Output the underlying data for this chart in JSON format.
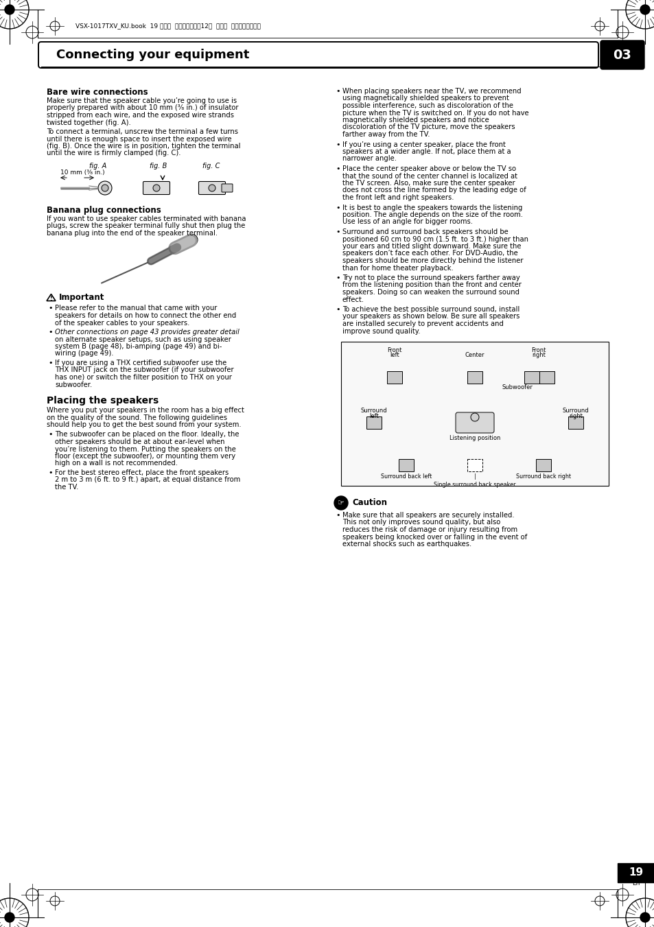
{
  "page_bg": "#ffffff",
  "header_text": "VSX-1017TXV_KU.book  19 ページ  ２００７年４月12日  木曜日  午前１１時３２分",
  "section_title": "Connecting your equipment",
  "chapter_num": "03",
  "page_num": "19",
  "bare_wire_title": "Bare wire connections",
  "banana_title": "Banana plug connections",
  "important_title": "Important",
  "placing_title": "Placing the speakers",
  "caution_title": "Caution"
}
